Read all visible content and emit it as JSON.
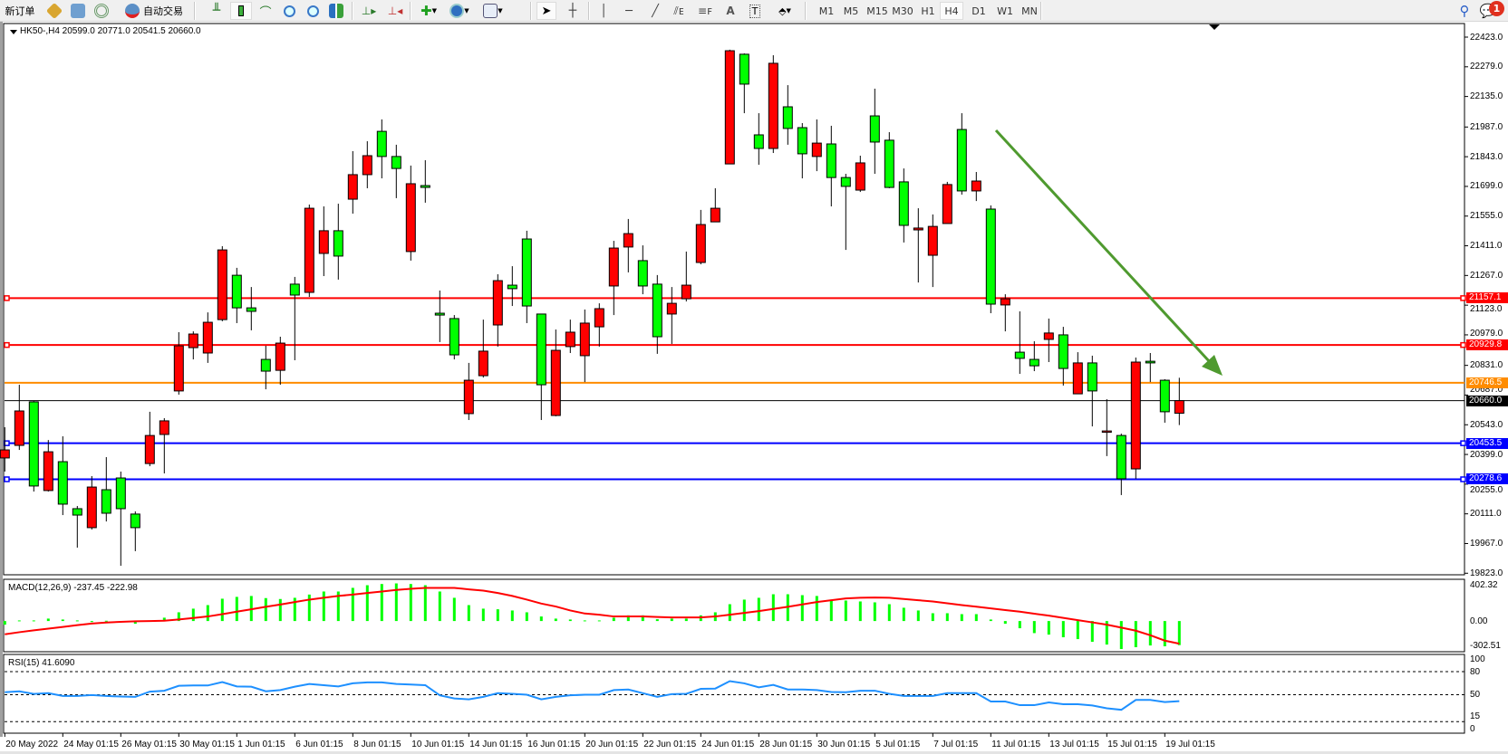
{
  "toolbar": {
    "new_order": "新订单",
    "auto_trading": "自动交易",
    "timeframes": [
      "M1",
      "M5",
      "M15",
      "M30",
      "H1",
      "H4",
      "D1",
      "W1",
      "MN"
    ],
    "selected_timeframe": "H4",
    "notifications_count": "1",
    "icons": [
      "new-order-icon",
      "market-watch-icon",
      "navigator-icon",
      "signals-icon",
      "auto-trading-icon",
      "bar-chart-icon",
      "candlestick-icon",
      "line-chart-icon",
      "zoom-in-icon",
      "zoom-out-icon",
      "tile-windows-icon",
      "chart-shift-icon",
      "autoscroll-icon",
      "indicators-icon",
      "periods-icon",
      "templates-icon",
      "cursor-icon",
      "crosshair-icon",
      "vertical-line-icon",
      "horizontal-line-icon",
      "trendline-icon",
      "equidistant-channel-icon",
      "fibonacci-icon",
      "text-icon",
      "text-label-icon",
      "arrows-icon",
      "search-icon",
      "notifications-icon"
    ]
  },
  "chart": {
    "header": "HK50-,H4  20599.0 20771.0 20541.5 20660.0",
    "macd_label": "MACD(12,26,9) -237.45 -222.98",
    "rsi_label": "RSI(15) 41.6090",
    "colors": {
      "bull": "#ff0000",
      "bear": "#00ff00",
      "macd_hist": "#00ff00",
      "macd_signal": "#ff0000",
      "rsi": "#1e90ff",
      "arrow": "#4f9a2f"
    }
  },
  "chart_data": [
    {
      "type": "candlestick",
      "symbol": "HK50-",
      "timeframe": "H4",
      "ylim": [
        19823,
        22423
      ],
      "yticks": [
        "22423.0",
        "22279.0",
        "22135.0",
        "21987.0",
        "21843.0",
        "21699.0",
        "21555.0",
        "21411.0",
        "21267.0",
        "21123.0",
        "20979.0",
        "20831.0",
        "20687.0",
        "20543.0",
        "20399.0",
        "20255.0",
        "20111.0",
        "19967.0",
        "19823.0"
      ],
      "xtick_labels": [
        [
          0,
          "20 May 2022"
        ],
        [
          4,
          "24 May 01:15"
        ],
        [
          8,
          "26 May 01:15"
        ],
        [
          12,
          "30 May 01:15"
        ],
        [
          16,
          "1 Jun 01:15"
        ],
        [
          20,
          "6 Jun 01:15"
        ],
        [
          24,
          "8 Jun 01:15"
        ],
        [
          28,
          "10 Jun 01:15"
        ],
        [
          32,
          "14 Jun 01:15"
        ],
        [
          36,
          "16 Jun 01:15"
        ],
        [
          40,
          "20 Jun 01:15"
        ],
        [
          44,
          "22 Jun 01:15"
        ],
        [
          48,
          "24 Jun 01:15"
        ],
        [
          52,
          "28 Jun 01:15"
        ],
        [
          56,
          "30 Jun 01:15"
        ],
        [
          60,
          "5 Jul 01:15"
        ],
        [
          64,
          "7 Jul 01:15"
        ],
        [
          68,
          "11 Jul 01:15"
        ],
        [
          72,
          "13 Jul 01:15"
        ],
        [
          76,
          "15 Jul 01:15"
        ],
        [
          80,
          "19 Jul 01:15"
        ]
      ],
      "ohlc": [
        [
          20382,
          20531,
          20316,
          20421
        ],
        [
          20443,
          20737,
          20421,
          20610
        ],
        [
          20654,
          20658,
          20219,
          20246
        ],
        [
          20224,
          20469,
          20219,
          20412
        ],
        [
          20364,
          20487,
          20105,
          20158
        ],
        [
          20136,
          20149,
          19947,
          20105
        ],
        [
          20044,
          20294,
          20035,
          20241
        ],
        [
          20228,
          20386,
          20074,
          20114
        ],
        [
          20285,
          20316,
          19859,
          20136
        ],
        [
          20110,
          20123,
          19930,
          20044
        ],
        [
          20355,
          20606,
          20342,
          20491
        ],
        [
          20496,
          20575,
          20307,
          20562
        ],
        [
          20707,
          20992,
          20689,
          20926
        ],
        [
          20917,
          20996,
          20860,
          20983
        ],
        [
          20891,
          21088,
          20843,
          21040
        ],
        [
          21053,
          21409,
          21045,
          21391
        ],
        [
          21268,
          21304,
          21036,
          21110
        ],
        [
          21110,
          21211,
          21001,
          21093
        ],
        [
          20860,
          20926,
          20715,
          20803
        ],
        [
          20807,
          20970,
          20737,
          20939
        ],
        [
          21225,
          21260,
          20856,
          21172
        ],
        [
          21185,
          21611,
          21163,
          21593
        ],
        [
          21374,
          21602,
          21264,
          21484
        ],
        [
          21484,
          21615,
          21247,
          21361
        ],
        [
          21637,
          21870,
          21567,
          21756
        ],
        [
          21756,
          21918,
          21690,
          21848
        ],
        [
          21966,
          22024,
          21738,
          21844
        ],
        [
          21844,
          21901,
          21642,
          21786
        ],
        [
          21383,
          21800,
          21339,
          21712
        ],
        [
          21703,
          21826,
          21620,
          21694
        ],
        [
          21084,
          21194,
          20944,
          21075
        ],
        [
          21058,
          21075,
          20860,
          20882
        ],
        [
          20597,
          20843,
          20566,
          20759
        ],
        [
          20781,
          21053,
          20772,
          20900
        ],
        [
          21027,
          21273,
          20922,
          21242
        ],
        [
          21220,
          21312,
          21119,
          21203
        ],
        [
          21444,
          21484,
          21036,
          21119
        ],
        [
          21080,
          21080,
          20566,
          20737
        ],
        [
          20588,
          21005,
          20584,
          20904
        ],
        [
          20922,
          21053,
          20891,
          20992
        ],
        [
          20878,
          21102,
          20750,
          21036
        ],
        [
          21018,
          21132,
          20922,
          21106
        ],
        [
          21216,
          21435,
          21075,
          21400
        ],
        [
          21405,
          21541,
          21282,
          21470
        ],
        [
          21339,
          21413,
          21176,
          21216
        ],
        [
          21225,
          21269,
          20887,
          20970
        ],
        [
          21080,
          21211,
          20935,
          21132
        ],
        [
          21154,
          21383,
          21141,
          21220
        ],
        [
          21330,
          21585,
          21321,
          21514
        ],
        [
          21527,
          21690,
          21527,
          21593
        ],
        [
          21808,
          22362,
          21808,
          22357
        ],
        [
          22340,
          22344,
          22054,
          22195
        ],
        [
          21949,
          22054,
          21804,
          21883
        ],
        [
          21883,
          22335,
          21861,
          22296
        ],
        [
          22085,
          22190,
          21901,
          21980
        ],
        [
          21984,
          22006,
          21738,
          21857
        ],
        [
          21844,
          22024,
          21773,
          21909
        ],
        [
          21905,
          21993,
          21602,
          21742
        ],
        [
          21742,
          21760,
          21391,
          21699
        ],
        [
          21681,
          21848,
          21672,
          21813
        ],
        [
          22041,
          22173,
          21760,
          21914
        ],
        [
          21923,
          21962,
          21690,
          21694
        ],
        [
          21721,
          21786,
          21427,
          21510
        ],
        [
          21488,
          21593,
          21233,
          21497
        ],
        [
          21365,
          21563,
          21211,
          21505
        ],
        [
          21519,
          21721,
          21519,
          21708
        ],
        [
          21975,
          22054,
          21659,
          21677
        ],
        [
          21677,
          21769,
          21628,
          21725
        ],
        [
          21589,
          21607,
          21084,
          21128
        ],
        [
          21124,
          21176,
          20996,
          21154
        ],
        [
          20895,
          21093,
          20790,
          20865
        ],
        [
          20860,
          20948,
          20803,
          20829
        ],
        [
          20957,
          21058,
          20847,
          20988
        ],
        [
          20979,
          21018,
          20733,
          20816
        ],
        [
          20693,
          20895,
          20693,
          20843
        ],
        [
          20843,
          20878,
          20535,
          20707
        ],
        [
          20513,
          20667,
          20391,
          20513
        ],
        [
          20491,
          20500,
          20202,
          20281
        ],
        [
          20329,
          20869,
          20281,
          20847
        ],
        [
          20851,
          20891,
          20750,
          20843
        ],
        [
          20759,
          20764,
          20553,
          20606
        ],
        [
          20599,
          20771,
          20541.5,
          20660
        ]
      ],
      "levels": [
        {
          "price": "21157.1",
          "color": "#ff0000"
        },
        {
          "price": "20929.8",
          "color": "#ff0000"
        },
        {
          "price": "20746.5",
          "color": "#ff8c00"
        },
        {
          "price": "20660.0",
          "color": "#000000"
        },
        {
          "price": "20453.5",
          "color": "#0000ff"
        },
        {
          "price": "20278.6",
          "color": "#0000ff"
        }
      ],
      "annotation": "downward green arrow"
    },
    {
      "type": "bar+line",
      "name": "MACD(12,26,9)",
      "ylim": [
        -302.51,
        402.32
      ],
      "yticks": [
        "402.32",
        "0.00",
        "-302.51"
      ],
      "histogram": [
        -36,
        6,
        6,
        24,
        15,
        6,
        -10,
        3,
        -12,
        -27,
        3,
        33,
        86,
        122,
        157,
        220,
        238,
        247,
        226,
        217,
        229,
        261,
        291,
        291,
        327,
        353,
        365,
        371,
        365,
        353,
        291,
        229,
        157,
        122,
        116,
        104,
        86,
        45,
        24,
        15,
        6,
        6,
        33,
        56,
        56,
        18,
        24,
        24,
        56,
        86,
        166,
        211,
        229,
        264,
        264,
        255,
        247,
        211,
        202,
        193,
        184,
        166,
        131,
        104,
        77,
        77,
        68,
        68,
        15,
        -27,
        -71,
        -119,
        -134,
        -160,
        -178,
        -205,
        -232,
        -276,
        -258,
        -241,
        -249,
        -237.45
      ],
      "signal": [
        -131,
        -110,
        -92,
        -75,
        -58,
        -40,
        -25,
        -15,
        -8,
        -3,
        0,
        3,
        15,
        30,
        45,
        68,
        92,
        116,
        140,
        163,
        187,
        211,
        229,
        247,
        261,
        276,
        291,
        306,
        318,
        327,
        327,
        327,
        312,
        300,
        276,
        247,
        211,
        172,
        143,
        104,
        74,
        62,
        45,
        45,
        45,
        40,
        36,
        36,
        36,
        45,
        62,
        80,
        98,
        119,
        140,
        164,
        187,
        205,
        223,
        230,
        232,
        229,
        217,
        205,
        193,
        175,
        157,
        141,
        125,
        108,
        92,
        72,
        53,
        31,
        9,
        -13,
        -36,
        -65,
        -95,
        -140,
        -193,
        -222.98
      ]
    },
    {
      "type": "line",
      "name": "RSI(15)",
      "ylim": [
        0,
        100
      ],
      "yticks": [
        "100",
        "80",
        "50",
        "15",
        "0"
      ],
      "levels": [
        80,
        50,
        15
      ],
      "values": [
        53.2,
        54.4,
        51,
        52,
        48.4,
        48.4,
        49.6,
        48.4,
        47.6,
        47.2,
        54,
        55.2,
        61.6,
        62,
        62,
        66.4,
        60.8,
        60.4,
        54.4,
        56,
        60.4,
        64,
        62.4,
        60.8,
        64.8,
        66,
        66,
        64,
        63.2,
        62.4,
        49.2,
        45.2,
        44,
        47.2,
        52,
        51.2,
        50,
        44,
        47.2,
        49.2,
        50,
        50,
        56,
        56.8,
        52,
        47.2,
        50.8,
        51.2,
        57.6,
        58,
        67.6,
        64.8,
        59.6,
        62.8,
        56.8,
        56.8,
        56,
        53.6,
        53.2,
        55.2,
        55.2,
        51.2,
        48.4,
        48.4,
        48.4,
        52,
        52,
        52,
        41.2,
        41.2,
        36.4,
        36.4,
        40,
        37.6,
        37.6,
        36,
        32.4,
        30.4,
        43.2,
        43.2,
        40.4,
        41.609
      ]
    }
  ]
}
